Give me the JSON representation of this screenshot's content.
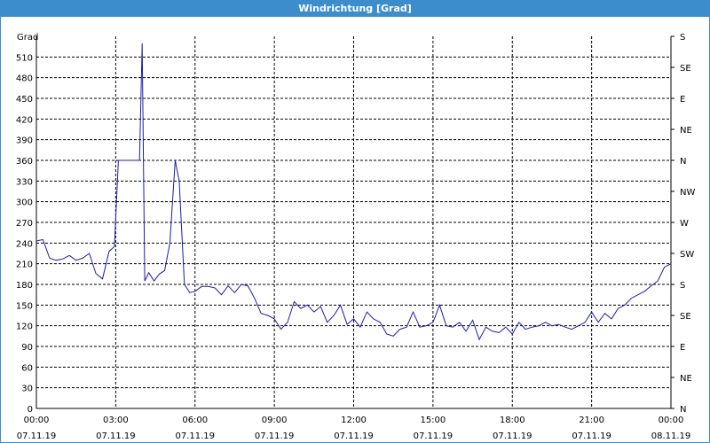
{
  "window_title": "Windrichtung [Grad]",
  "chart_data": {
    "type": "line",
    "ylabel": "Grad",
    "x": [
      0,
      0.25,
      0.5,
      0.75,
      1,
      1.25,
      1.5,
      1.75,
      2,
      2.25,
      2.5,
      2.75,
      2.95,
      3.1,
      3.4,
      3.7,
      3.9,
      4.0,
      4.1,
      4.25,
      4.45,
      4.65,
      4.85,
      5.05,
      5.25,
      5.4,
      5.6,
      5.8,
      6,
      6.25,
      6.5,
      6.75,
      7,
      7.25,
      7.5,
      7.75,
      8,
      8.25,
      8.5,
      8.75,
      9,
      9.25,
      9.5,
      9.75,
      10,
      10.25,
      10.5,
      10.75,
      11,
      11.25,
      11.5,
      11.75,
      12,
      12.25,
      12.5,
      12.75,
      13,
      13.25,
      13.5,
      13.75,
      14,
      14.25,
      14.5,
      14.75,
      15,
      15.25,
      15.5,
      15.75,
      16,
      16.25,
      16.5,
      16.75,
      17,
      17.25,
      17.5,
      17.75,
      18,
      18.25,
      18.5,
      18.75,
      19,
      19.25,
      19.5,
      19.75,
      20,
      20.25,
      20.5,
      20.75,
      21,
      21.25,
      21.5,
      21.75,
      22,
      22.25,
      22.5,
      22.75,
      23,
      23.25,
      23.5,
      23.75,
      24
    ],
    "series": [
      {
        "color": "#1c1ca8",
        "values": [
          243,
          245,
          218,
          215,
          217,
          222,
          215,
          218,
          225,
          196,
          188,
          228,
          235,
          360,
          360,
          360,
          360,
          530,
          185,
          197,
          185,
          195,
          200,
          240,
          360,
          330,
          180,
          168,
          170,
          177,
          177,
          175,
          165,
          178,
          168,
          180,
          178,
          160,
          138,
          135,
          130,
          115,
          125,
          155,
          145,
          150,
          140,
          148,
          125,
          135,
          150,
          122,
          130,
          118,
          140,
          130,
          125,
          108,
          105,
          115,
          118,
          140,
          118,
          120,
          125,
          150,
          120,
          118,
          125,
          112,
          128,
          100,
          118,
          112,
          110,
          118,
          108,
          125,
          115,
          118,
          120,
          125,
          120,
          122,
          118,
          115,
          120,
          125,
          140,
          125,
          138,
          130,
          145,
          150,
          160,
          165,
          170,
          178,
          185,
          205,
          210
        ]
      }
    ],
    "xlim": [
      0,
      24
    ],
    "xticks": [
      {
        "value": 0,
        "label": "00:00",
        "date": "07.11.19"
      },
      {
        "value": 3,
        "label": "03:00",
        "date": "07.11.19"
      },
      {
        "value": 6,
        "label": "06:00",
        "date": "07.11.19"
      },
      {
        "value": 9,
        "label": "09:00",
        "date": "07.11.19"
      },
      {
        "value": 12,
        "label": "12:00",
        "date": "07.11.19"
      },
      {
        "value": 15,
        "label": "15:00",
        "date": "07.11.19"
      },
      {
        "value": 18,
        "label": "18:00",
        "date": "07.11.19"
      },
      {
        "value": 21,
        "label": "21:00",
        "date": "07.11.19"
      },
      {
        "value": 24,
        "label": "00:00",
        "date": "08.11.19"
      }
    ],
    "ylim": [
      0,
      540
    ],
    "yticks": [
      0,
      30,
      60,
      90,
      120,
      150,
      180,
      210,
      240,
      270,
      300,
      330,
      360,
      390,
      420,
      450,
      480,
      510
    ],
    "y2lim": [
      0,
      540
    ],
    "y2ticks": [
      {
        "value": 0,
        "label": "N"
      },
      {
        "value": 45,
        "label": "NE"
      },
      {
        "value": 90,
        "label": "E"
      },
      {
        "value": 135,
        "label": "SE"
      },
      {
        "value": 180,
        "label": "S"
      },
      {
        "value": 225,
        "label": "SW"
      },
      {
        "value": 270,
        "label": "W"
      },
      {
        "value": 315,
        "label": "NW"
      },
      {
        "value": 360,
        "label": "N"
      },
      {
        "value": 405,
        "label": "NE"
      },
      {
        "value": 450,
        "label": "E"
      },
      {
        "value": 495,
        "label": "SE"
      },
      {
        "value": 540,
        "label": "S"
      }
    ],
    "grid": true
  }
}
